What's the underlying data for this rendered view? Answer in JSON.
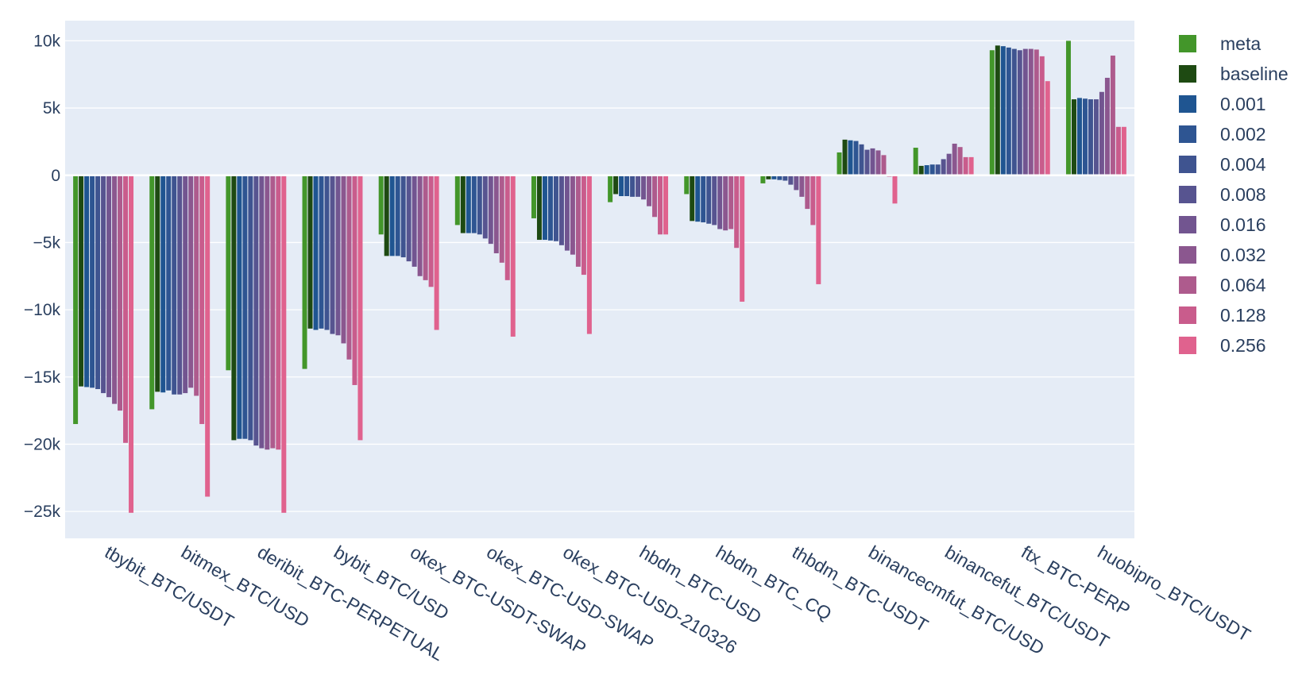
{
  "chart_data": {
    "type": "bar",
    "barmode": "group",
    "categories": [
      "tbybit_BTC/USDT",
      "bitmex_BTC/USD",
      "deribit_BTC-PERPETUAL",
      "bybit_BTC/USD",
      "okex_BTC-USDT-SWAP",
      "okex_BTC-USD-SWAP",
      "okex_BTC-USD-210326",
      "hbdm_BTC-USD",
      "hbdm_BTC_CQ",
      "thbdm_BTC-USDT",
      "binancecmfut_BTC/USD",
      "binancefut_BTC/USDT",
      "ftx_BTC-PERP",
      "huobipro_BTC/USDT"
    ],
    "ylim": [
      -27000,
      11500
    ],
    "yticks": [
      10000,
      5000,
      0,
      -5000,
      -10000,
      -15000,
      -20000,
      -25000
    ],
    "ytick_labels": [
      "10k",
      "5k",
      "0",
      "−5k",
      "−10k",
      "−15k",
      "−20k",
      "−25k"
    ],
    "grid": true,
    "legend_position": "right",
    "plot_bgcolor": "#e5ecf6",
    "series": [
      {
        "name": "meta",
        "color": "#43962a",
        "values": [
          -18500,
          -17400,
          -14500,
          -14400,
          -4400,
          -3700,
          -3200,
          -2000,
          -1400,
          -600,
          1700,
          2050,
          9300,
          10000
        ]
      },
      {
        "name": "baseline",
        "color": "#1e4a12",
        "values": [
          -15700,
          -16100,
          -19700,
          -11400,
          -6000,
          -4300,
          -4800,
          -1400,
          -3400,
          -300,
          2650,
          700,
          9650,
          5650
        ]
      },
      {
        "name": "0.001",
        "color": "#1f5591",
        "values": [
          -15750,
          -16150,
          -19600,
          -11500,
          -6000,
          -4300,
          -4800,
          -1550,
          -3450,
          -300,
          2600,
          750,
          9600,
          5750
        ]
      },
      {
        "name": "0.002",
        "color": "#2e5592",
        "values": [
          -15800,
          -16000,
          -19600,
          -11400,
          -6000,
          -4300,
          -4850,
          -1550,
          -3500,
          -350,
          2550,
          800,
          9500,
          5700
        ]
      },
      {
        "name": "0.004",
        "color": "#3f5490",
        "values": [
          -15900,
          -16300,
          -19700,
          -11500,
          -6100,
          -4400,
          -4900,
          -1600,
          -3600,
          -400,
          2300,
          800,
          9400,
          5650
        ]
      },
      {
        "name": "0.008",
        "color": "#575490",
        "values": [
          -16200,
          -16300,
          -20100,
          -11800,
          -6400,
          -4700,
          -5200,
          -1600,
          -3700,
          -700,
          1900,
          1200,
          9300,
          5650
        ]
      },
      {
        "name": "0.016",
        "color": "#725590",
        "values": [
          -16500,
          -16200,
          -20300,
          -11900,
          -6800,
          -5100,
          -5600,
          -1800,
          -4000,
          -1100,
          2000,
          1600,
          9400,
          6200
        ]
      },
      {
        "name": "0.032",
        "color": "#8b578f",
        "values": [
          -17000,
          -15800,
          -20400,
          -12500,
          -7500,
          -5800,
          -5900,
          -2300,
          -4100,
          -1600,
          1850,
          2350,
          9400,
          7250
        ]
      },
      {
        "name": "0.064",
        "color": "#ae5b8d",
        "values": [
          -17500,
          -16400,
          -20300,
          -13700,
          -7800,
          -6500,
          -6800,
          -3100,
          -4000,
          -2500,
          1500,
          2100,
          9350,
          8900
        ]
      },
      {
        "name": "0.128",
        "color": "#c95c8c",
        "values": [
          -19900,
          -18500,
          -20400,
          -15600,
          -8300,
          -7800,
          -7400,
          -4400,
          -5400,
          -3700,
          -100,
          1350,
          8850,
          3600
        ]
      },
      {
        "name": "0.256",
        "color": "#e0628e",
        "values": [
          -25100,
          -23900,
          -25100,
          -19700,
          -11500,
          -12000,
          -11800,
          -4400,
          -9400,
          -8100,
          -2100,
          1350,
          7000,
          3600
        ]
      }
    ]
  }
}
